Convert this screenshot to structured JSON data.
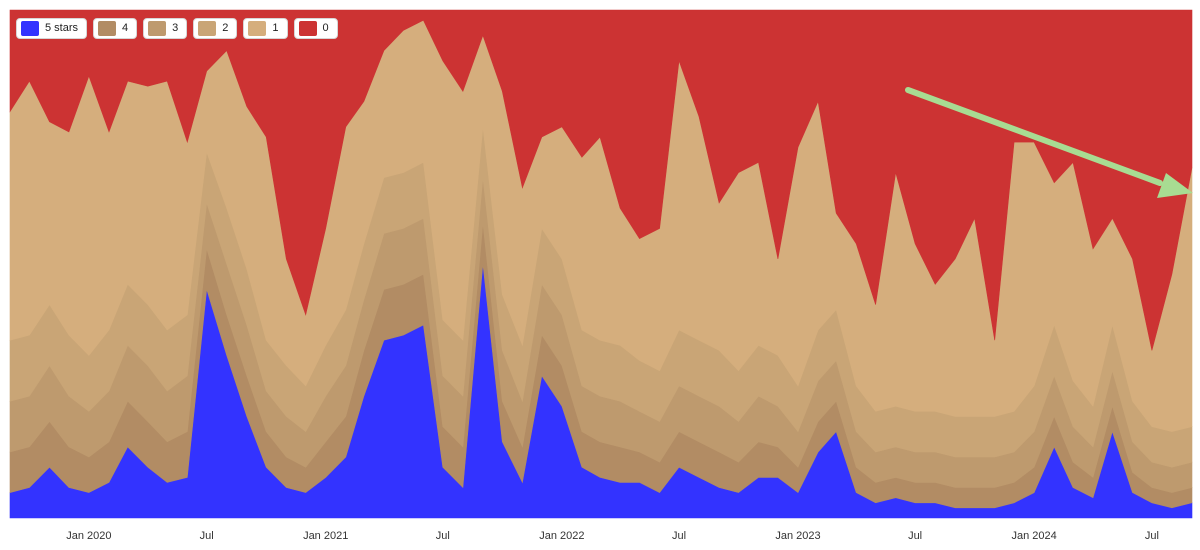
{
  "chart_data": {
    "type": "area",
    "stacked": true,
    "normalized": true,
    "x_domain": [
      "2019-09-01",
      "2024-09-01"
    ],
    "ylim": [
      0,
      1
    ],
    "grid": false,
    "legend_position": "top-left",
    "xticks": [
      {
        "date": "2020-01-01",
        "label": "Jan 2020"
      },
      {
        "date": "2020-07-01",
        "label": "Jul"
      },
      {
        "date": "2021-01-01",
        "label": "Jan 2021"
      },
      {
        "date": "2021-07-01",
        "label": "Jul"
      },
      {
        "date": "2022-01-01",
        "label": "Jan 2022"
      },
      {
        "date": "2022-07-01",
        "label": "Jul"
      },
      {
        "date": "2023-01-01",
        "label": "Jan 2023"
      },
      {
        "date": "2023-07-01",
        "label": "Jul"
      },
      {
        "date": "2024-01-01",
        "label": "Jan 2024"
      },
      {
        "date": "2024-07-01",
        "label": "Jul"
      }
    ],
    "legend": [
      {
        "label": "5 stars",
        "color": "#3333ff"
      },
      {
        "label": "4",
        "color": "#b28c64"
      },
      {
        "label": "3",
        "color": "#be9a6e"
      },
      {
        "label": "2",
        "color": "#c9a576"
      },
      {
        "label": "1",
        "color": "#d5ae7d"
      },
      {
        "label": "0",
        "color": "#cc3333"
      }
    ],
    "x": [
      "2019-09-01",
      "2019-10-01",
      "2019-11-01",
      "2019-12-01",
      "2020-01-01",
      "2020-02-01",
      "2020-03-01",
      "2020-04-01",
      "2020-05-01",
      "2020-06-01",
      "2020-07-01",
      "2020-08-01",
      "2020-09-01",
      "2020-10-01",
      "2020-11-01",
      "2020-12-01",
      "2021-01-01",
      "2021-02-01",
      "2021-03-01",
      "2021-04-01",
      "2021-05-01",
      "2021-06-01",
      "2021-07-01",
      "2021-08-01",
      "2021-09-01",
      "2021-10-01",
      "2021-11-01",
      "2021-12-01",
      "2022-01-01",
      "2022-02-01",
      "2022-03-01",
      "2022-04-01",
      "2022-05-01",
      "2022-06-01",
      "2022-07-01",
      "2022-08-01",
      "2022-09-01",
      "2022-10-01",
      "2022-11-01",
      "2022-12-01",
      "2023-01-01",
      "2023-02-01",
      "2023-03-01",
      "2023-04-01",
      "2023-05-01",
      "2023-06-01",
      "2023-07-01",
      "2023-08-01",
      "2023-09-01",
      "2023-10-01",
      "2023-11-01",
      "2023-12-01",
      "2024-01-01",
      "2024-02-01",
      "2024-03-01",
      "2024-04-01",
      "2024-05-01",
      "2024-06-01",
      "2024-07-01",
      "2024-08-01",
      "2024-09-01"
    ],
    "series": [
      {
        "name": "5 stars",
        "values": [
          0.05,
          0.06,
          0.1,
          0.06,
          0.05,
          0.07,
          0.14,
          0.1,
          0.07,
          0.08,
          0.45,
          0.32,
          0.2,
          0.1,
          0.06,
          0.05,
          0.08,
          0.12,
          0.24,
          0.35,
          0.36,
          0.38,
          0.1,
          0.06,
          0.5,
          0.15,
          0.07,
          0.28,
          0.22,
          0.1,
          0.08,
          0.07,
          0.07,
          0.05,
          0.1,
          0.08,
          0.06,
          0.05,
          0.08,
          0.08,
          0.05,
          0.13,
          0.17,
          0.05,
          0.03,
          0.04,
          0.03,
          0.03,
          0.02,
          0.02,
          0.02,
          0.03,
          0.05,
          0.14,
          0.06,
          0.04,
          0.17,
          0.05,
          0.03,
          0.02,
          0.03
        ]
      },
      {
        "name": "4",
        "values": [
          0.08,
          0.08,
          0.09,
          0.08,
          0.07,
          0.08,
          0.09,
          0.09,
          0.08,
          0.09,
          0.08,
          0.08,
          0.08,
          0.07,
          0.06,
          0.05,
          0.07,
          0.08,
          0.09,
          0.1,
          0.1,
          0.1,
          0.08,
          0.08,
          0.08,
          0.08,
          0.07,
          0.08,
          0.08,
          0.07,
          0.07,
          0.07,
          0.06,
          0.06,
          0.07,
          0.07,
          0.07,
          0.06,
          0.07,
          0.06,
          0.05,
          0.06,
          0.06,
          0.05,
          0.04,
          0.04,
          0.04,
          0.04,
          0.04,
          0.04,
          0.04,
          0.04,
          0.05,
          0.06,
          0.05,
          0.04,
          0.05,
          0.04,
          0.03,
          0.03,
          0.03
        ]
      },
      {
        "name": "3",
        "values": [
          0.1,
          0.1,
          0.11,
          0.1,
          0.09,
          0.1,
          0.11,
          0.11,
          0.1,
          0.11,
          0.09,
          0.1,
          0.1,
          0.08,
          0.08,
          0.07,
          0.09,
          0.1,
          0.1,
          0.11,
          0.11,
          0.11,
          0.1,
          0.1,
          0.09,
          0.1,
          0.09,
          0.1,
          0.1,
          0.09,
          0.09,
          0.09,
          0.08,
          0.08,
          0.09,
          0.09,
          0.09,
          0.08,
          0.09,
          0.08,
          0.07,
          0.08,
          0.08,
          0.07,
          0.06,
          0.06,
          0.06,
          0.06,
          0.06,
          0.06,
          0.06,
          0.06,
          0.07,
          0.08,
          0.07,
          0.06,
          0.07,
          0.06,
          0.05,
          0.05,
          0.05
        ]
      },
      {
        "name": "2",
        "values": [
          0.12,
          0.12,
          0.12,
          0.12,
          0.11,
          0.12,
          0.12,
          0.12,
          0.12,
          0.12,
          0.1,
          0.11,
          0.11,
          0.1,
          0.1,
          0.09,
          0.1,
          0.11,
          0.11,
          0.11,
          0.11,
          0.11,
          0.11,
          0.11,
          0.1,
          0.11,
          0.11,
          0.11,
          0.11,
          0.11,
          0.11,
          0.11,
          0.1,
          0.1,
          0.11,
          0.11,
          0.11,
          0.1,
          0.1,
          0.1,
          0.09,
          0.1,
          0.1,
          0.09,
          0.08,
          0.08,
          0.08,
          0.08,
          0.08,
          0.08,
          0.08,
          0.08,
          0.09,
          0.1,
          0.09,
          0.08,
          0.09,
          0.08,
          0.07,
          0.07,
          0.07
        ]
      },
      {
        "name": "1",
        "values": [
          0.45,
          0.5,
          0.36,
          0.4,
          0.55,
          0.39,
          0.4,
          0.43,
          0.49,
          0.34,
          0.16,
          0.31,
          0.32,
          0.4,
          0.21,
          0.14,
          0.23,
          0.36,
          0.28,
          0.25,
          0.28,
          0.28,
          0.51,
          0.49,
          0.18,
          0.4,
          0.31,
          0.18,
          0.26,
          0.34,
          0.4,
          0.27,
          0.24,
          0.28,
          0.53,
          0.44,
          0.29,
          0.39,
          0.36,
          0.19,
          0.47,
          0.45,
          0.19,
          0.28,
          0.21,
          0.46,
          0.33,
          0.25,
          0.31,
          0.39,
          0.15,
          0.53,
          0.48,
          0.28,
          0.43,
          0.31,
          0.21,
          0.28,
          0.15,
          0.31,
          0.51
        ]
      },
      {
        "name": "0",
        "values": [
          0.2,
          0.14,
          0.22,
          0.24,
          0.13,
          0.24,
          0.14,
          0.15,
          0.14,
          0.26,
          0.12,
          0.08,
          0.19,
          0.25,
          0.49,
          0.6,
          0.43,
          0.23,
          0.18,
          0.08,
          0.04,
          0.02,
          0.1,
          0.16,
          0.05,
          0.16,
          0.35,
          0.25,
          0.23,
          0.29,
          0.25,
          0.39,
          0.45,
          0.43,
          0.1,
          0.21,
          0.38,
          0.32,
          0.3,
          0.49,
          0.27,
          0.18,
          0.4,
          0.46,
          0.58,
          0.32,
          0.46,
          0.54,
          0.49,
          0.41,
          0.65,
          0.26,
          0.26,
          0.34,
          0.3,
          0.47,
          0.41,
          0.49,
          0.67,
          0.52,
          0.31
        ]
      }
    ]
  }
}
